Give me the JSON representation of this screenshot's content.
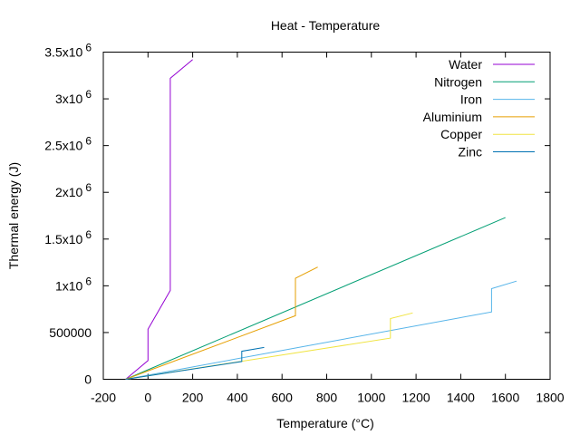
{
  "chart_data": {
    "type": "line",
    "title": "Heat - Temperature",
    "xlabel": "Temperature (°C)",
    "ylabel": "Thermal energy (J)",
    "xlim": [
      -200,
      1800
    ],
    "ylim": [
      0,
      3500000
    ],
    "grid": false,
    "legend": "top-right",
    "x_ticks": [
      {
        "value": -200,
        "label": "-200"
      },
      {
        "value": 0,
        "label": "0"
      },
      {
        "value": 200,
        "label": "200"
      },
      {
        "value": 400,
        "label": "400"
      },
      {
        "value": 600,
        "label": "600"
      },
      {
        "value": 800,
        "label": "800"
      },
      {
        "value": 1000,
        "label": "1000"
      },
      {
        "value": 1200,
        "label": "1200"
      },
      {
        "value": 1400,
        "label": "1400"
      },
      {
        "value": 1600,
        "label": "1600"
      },
      {
        "value": 1800,
        "label": "1800"
      }
    ],
    "y_ticks": [
      {
        "value": 0,
        "label": "0",
        "exp": ""
      },
      {
        "value": 500000,
        "label": "500000",
        "exp": ""
      },
      {
        "value": 1000000,
        "label": "1x10",
        "exp": "6"
      },
      {
        "value": 1500000,
        "label": "1.5x10",
        "exp": "6"
      },
      {
        "value": 2000000,
        "label": "2x10",
        "exp": "6"
      },
      {
        "value": 2500000,
        "label": "2.5x10",
        "exp": "6"
      },
      {
        "value": 3000000,
        "label": "3x10",
        "exp": "6"
      },
      {
        "value": 3500000,
        "label": "3.5x10",
        "exp": "6"
      }
    ],
    "series": [
      {
        "name": "Water",
        "color": "#9400d3",
        "points": [
          [
            -100,
            0
          ],
          [
            0,
            200000
          ],
          [
            0,
            535000
          ],
          [
            100,
            950000
          ],
          [
            100,
            3220000
          ],
          [
            200,
            3420000
          ]
        ]
      },
      {
        "name": "Nitrogen",
        "color": "#009e73",
        "points": [
          [
            -100,
            0
          ],
          [
            1600,
            1730000
          ]
        ]
      },
      {
        "name": "Iron",
        "color": "#56b4e9",
        "points": [
          [
            -100,
            0
          ],
          [
            1538,
            720000
          ],
          [
            1538,
            970000
          ],
          [
            1650,
            1050000
          ]
        ]
      },
      {
        "name": "Aluminium",
        "color": "#e69f00",
        "points": [
          [
            -100,
            0
          ],
          [
            660,
            680000
          ],
          [
            660,
            1080000
          ],
          [
            760,
            1200000
          ]
        ]
      },
      {
        "name": "Copper",
        "color": "#f0e442",
        "points": [
          [
            -100,
            0
          ],
          [
            1085,
            440000
          ],
          [
            1085,
            650000
          ],
          [
            1185,
            710000
          ]
        ]
      },
      {
        "name": "Zinc",
        "color": "#0072b2",
        "points": [
          [
            -100,
            0
          ],
          [
            420,
            190000
          ],
          [
            420,
            300000
          ],
          [
            520,
            340000
          ]
        ]
      }
    ]
  }
}
